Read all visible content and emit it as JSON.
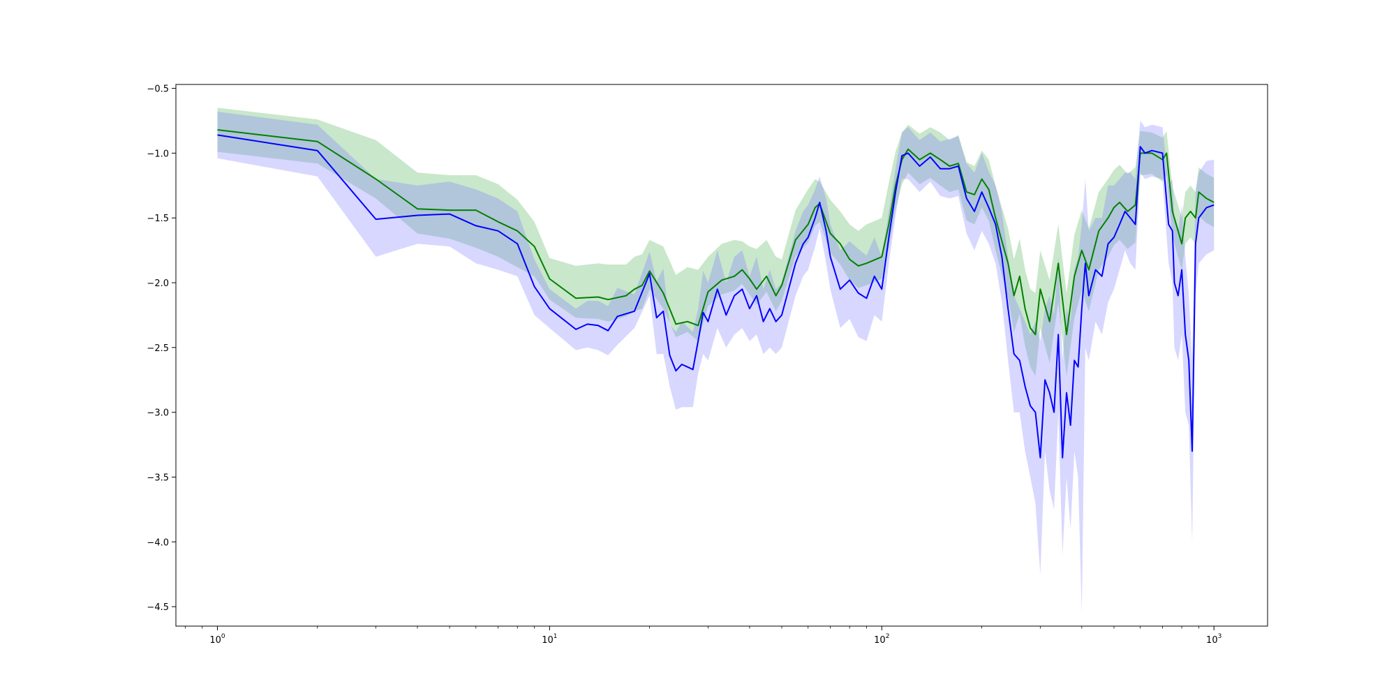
{
  "chart_data": {
    "type": "line",
    "title": "",
    "xlabel": "",
    "ylabel": "",
    "xscale": "log",
    "xlim": [
      0.75,
      1450
    ],
    "ylim": [
      -4.65,
      -0.47
    ],
    "grid": false,
    "x_major_ticks": [
      1,
      10,
      100,
      1000
    ],
    "x_tick_labels": [
      {
        "base": "10",
        "exp": "0"
      },
      {
        "base": "10",
        "exp": "1"
      },
      {
        "base": "10",
        "exp": "2"
      },
      {
        "base": "10",
        "exp": "3"
      }
    ],
    "y_ticks": [
      -0.5,
      -1.0,
      -1.5,
      -2.0,
      -2.5,
      -3.0,
      -3.5,
      -4.0,
      -4.5
    ],
    "y_tick_labels": [
      "−0.5",
      "−1.0",
      "−1.5",
      "−2.0",
      "−2.5",
      "−3.0",
      "−3.5",
      "−4.0",
      "−4.5"
    ],
    "series": [
      {
        "color": "#008000",
        "band_color": "#4caf50",
        "x": [
          1,
          2,
          3,
          4,
          5,
          6,
          7,
          8,
          9,
          10,
          12,
          14,
          15,
          17,
          18,
          19,
          20,
          22,
          24,
          26,
          28,
          30,
          33,
          36,
          38,
          40,
          42,
          45,
          48,
          50,
          55,
          60,
          63,
          65,
          70,
          75,
          80,
          85,
          90,
          100,
          105,
          110,
          115,
          120,
          130,
          140,
          150,
          160,
          170,
          180,
          190,
          200,
          210,
          220,
          230,
          240,
          250,
          260,
          270,
          280,
          290,
          300,
          320,
          340,
          360,
          380,
          400,
          420,
          450,
          480,
          500,
          520,
          550,
          580,
          600,
          650,
          700,
          720,
          750,
          780,
          800,
          820,
          850,
          880,
          900,
          950,
          1000
        ],
        "y": [
          -0.82,
          -0.91,
          -1.2,
          -1.43,
          -1.44,
          -1.44,
          -1.53,
          -1.6,
          -1.72,
          -1.97,
          -2.12,
          -2.11,
          -2.13,
          -2.1,
          -2.05,
          -2.02,
          -1.91,
          -2.08,
          -2.32,
          -2.3,
          -2.33,
          -2.07,
          -1.98,
          -1.95,
          -1.9,
          -1.97,
          -2.05,
          -1.95,
          -2.1,
          -2.02,
          -1.67,
          -1.55,
          -1.42,
          -1.39,
          -1.62,
          -1.7,
          -1.82,
          -1.87,
          -1.85,
          -1.8,
          -1.55,
          -1.25,
          -1.05,
          -0.97,
          -1.05,
          -1.0,
          -1.05,
          -1.1,
          -1.08,
          -1.3,
          -1.32,
          -1.2,
          -1.28,
          -1.5,
          -1.68,
          -1.85,
          -2.1,
          -1.95,
          -2.2,
          -2.35,
          -2.4,
          -2.05,
          -2.3,
          -1.85,
          -2.4,
          -1.95,
          -1.75,
          -1.9,
          -1.6,
          -1.5,
          -1.42,
          -1.38,
          -1.45,
          -1.4,
          -1.0,
          -1.0,
          -1.05,
          -1.0,
          -1.45,
          -1.6,
          -1.7,
          -1.5,
          -1.45,
          -1.5,
          -1.3,
          -1.35,
          -1.38
        ],
        "lower": [
          -0.99,
          -1.08,
          -1.35,
          -1.62,
          -1.66,
          -1.73,
          -1.8,
          -1.88,
          -1.95,
          -2.13,
          -2.27,
          -2.28,
          -2.3,
          -2.26,
          -2.22,
          -2.2,
          -2.05,
          -2.2,
          -2.42,
          -2.38,
          -2.45,
          -2.18,
          -2.09,
          -2.06,
          -2.01,
          -2.09,
          -2.17,
          -2.07,
          -2.22,
          -2.14,
          -1.8,
          -1.69,
          -1.56,
          -1.53,
          -1.77,
          -1.86,
          -1.98,
          -2.04,
          -2.02,
          -1.97,
          -1.73,
          -1.43,
          -1.24,
          -1.15,
          -1.24,
          -1.19,
          -1.25,
          -1.3,
          -1.28,
          -1.52,
          -1.55,
          -1.42,
          -1.52,
          -1.75,
          -1.94,
          -2.12,
          -2.38,
          -2.24,
          -2.49,
          -2.65,
          -2.72,
          -2.35,
          -2.62,
          -2.15,
          -2.72,
          -2.27,
          -2.06,
          -2.22,
          -1.9,
          -1.8,
          -1.71,
          -1.67,
          -1.74,
          -1.69,
          -1.17,
          -1.16,
          -1.22,
          -1.17,
          -1.64,
          -1.8,
          -1.9,
          -1.7,
          -1.65,
          -1.7,
          -1.49,
          -1.54,
          -1.57
        ],
        "upper": [
          -0.65,
          -0.74,
          -0.9,
          -1.15,
          -1.17,
          -1.17,
          -1.24,
          -1.36,
          -1.53,
          -1.81,
          -1.87,
          -1.85,
          -1.86,
          -1.86,
          -1.8,
          -1.78,
          -1.67,
          -1.72,
          -1.94,
          -1.88,
          -1.9,
          -1.8,
          -1.7,
          -1.67,
          -1.68,
          -1.72,
          -1.74,
          -1.67,
          -1.8,
          -1.82,
          -1.44,
          -1.28,
          -1.2,
          -1.22,
          -1.36,
          -1.45,
          -1.55,
          -1.6,
          -1.55,
          -1.5,
          -1.23,
          -0.99,
          -0.84,
          -0.78,
          -0.85,
          -0.8,
          -0.84,
          -0.9,
          -0.86,
          -1.07,
          -1.1,
          -0.98,
          -1.05,
          -1.25,
          -1.42,
          -1.58,
          -1.82,
          -1.66,
          -1.9,
          -2.05,
          -2.08,
          -1.75,
          -1.98,
          -1.55,
          -2.08,
          -1.63,
          -1.44,
          -1.58,
          -1.3,
          -1.2,
          -1.13,
          -1.09,
          -1.16,
          -1.11,
          -0.83,
          -0.84,
          -0.88,
          -0.83,
          -1.26,
          -1.4,
          -1.5,
          -1.3,
          -1.25,
          -1.3,
          -1.11,
          -1.16,
          -1.19
        ]
      },
      {
        "color": "#0000ff",
        "band_color": "#7b7bff",
        "x": [
          1,
          2,
          3,
          4,
          5,
          6,
          7,
          8,
          9,
          10,
          12,
          13,
          14,
          15,
          16,
          18,
          20,
          21,
          22,
          23,
          24,
          25,
          26,
          27,
          28,
          29,
          30,
          32,
          34,
          36,
          38,
          40,
          42,
          44,
          46,
          48,
          50,
          55,
          58,
          60,
          63,
          65,
          68,
          70,
          75,
          80,
          85,
          90,
          95,
          100,
          105,
          110,
          115,
          120,
          130,
          140,
          150,
          160,
          170,
          180,
          190,
          200,
          210,
          220,
          230,
          240,
          250,
          260,
          270,
          280,
          290,
          300,
          310,
          320,
          330,
          340,
          350,
          360,
          370,
          380,
          390,
          400,
          410,
          420,
          440,
          460,
          480,
          500,
          520,
          540,
          560,
          580,
          600,
          620,
          650,
          700,
          730,
          750,
          760,
          780,
          800,
          820,
          840,
          860,
          880,
          900,
          950,
          1000
        ],
        "y": [
          -0.86,
          -0.98,
          -1.51,
          -1.48,
          -1.47,
          -1.56,
          -1.6,
          -1.7,
          -2.03,
          -2.2,
          -2.36,
          -2.32,
          -2.33,
          -2.37,
          -2.26,
          -2.22,
          -1.93,
          -2.27,
          -2.22,
          -2.56,
          -2.68,
          -2.63,
          -2.65,
          -2.67,
          -2.45,
          -2.23,
          -2.3,
          -2.05,
          -2.25,
          -2.1,
          -2.05,
          -2.2,
          -2.1,
          -2.3,
          -2.2,
          -2.3,
          -2.25,
          -1.85,
          -1.7,
          -1.65,
          -1.5,
          -1.38,
          -1.6,
          -1.8,
          -2.05,
          -1.98,
          -2.08,
          -2.12,
          -1.95,
          -2.05,
          -1.65,
          -1.3,
          -1.02,
          -1.0,
          -1.1,
          -1.03,
          -1.12,
          -1.12,
          -1.1,
          -1.35,
          -1.45,
          -1.3,
          -1.42,
          -1.55,
          -1.8,
          -2.2,
          -2.55,
          -2.6,
          -2.8,
          -2.95,
          -3.0,
          -3.35,
          -2.75,
          -2.85,
          -3.0,
          -2.4,
          -3.35,
          -2.85,
          -3.1,
          -2.6,
          -2.65,
          -2.2,
          -1.85,
          -2.1,
          -1.9,
          -1.95,
          -1.7,
          -1.65,
          -1.55,
          -1.45,
          -1.5,
          -1.55,
          -0.95,
          -1.0,
          -0.98,
          -1.0,
          -1.55,
          -1.6,
          -2.0,
          -2.1,
          -1.9,
          -2.4,
          -2.6,
          -3.3,
          -1.7,
          -1.5,
          -1.42,
          -1.4
        ],
        "lower": [
          -1.04,
          -1.18,
          -1.8,
          -1.7,
          -1.72,
          -1.85,
          -1.9,
          -1.95,
          -2.25,
          -2.35,
          -2.52,
          -2.5,
          -2.52,
          -2.56,
          -2.48,
          -2.35,
          -2.1,
          -2.55,
          -2.55,
          -2.8,
          -2.98,
          -2.96,
          -2.96,
          -2.96,
          -2.7,
          -2.55,
          -2.6,
          -2.35,
          -2.5,
          -2.4,
          -2.35,
          -2.45,
          -2.4,
          -2.55,
          -2.5,
          -2.55,
          -2.5,
          -2.1,
          -1.95,
          -1.9,
          -1.72,
          -1.58,
          -1.85,
          -2.05,
          -2.35,
          -2.28,
          -2.42,
          -2.45,
          -2.25,
          -2.3,
          -1.85,
          -1.48,
          -1.2,
          -1.2,
          -1.3,
          -1.22,
          -1.33,
          -1.35,
          -1.33,
          -1.62,
          -1.75,
          -1.6,
          -1.7,
          -1.85,
          -2.15,
          -2.6,
          -3.0,
          -3.0,
          -3.3,
          -3.5,
          -3.7,
          -4.25,
          -3.3,
          -3.6,
          -3.75,
          -3.0,
          -4.1,
          -3.5,
          -3.9,
          -3.3,
          -3.5,
          -4.55,
          -2.5,
          -2.6,
          -2.3,
          -2.4,
          -2.15,
          -2.05,
          -1.9,
          -1.75,
          -1.85,
          -1.9,
          -1.15,
          -1.2,
          -1.18,
          -1.2,
          -1.85,
          -2.0,
          -2.5,
          -2.6,
          -2.4,
          -3.0,
          -3.1,
          -4.0,
          -2.1,
          -1.85,
          -1.78,
          -1.75
        ],
        "upper": [
          -0.68,
          -0.78,
          -1.2,
          -1.25,
          -1.22,
          -1.28,
          -1.35,
          -1.45,
          -1.82,
          -2.05,
          -2.2,
          -2.14,
          -2.14,
          -2.18,
          -2.04,
          -2.09,
          -1.76,
          -1.99,
          -1.89,
          -2.32,
          -2.38,
          -2.3,
          -2.34,
          -2.38,
          -2.2,
          -1.91,
          -2.0,
          -1.75,
          -2.0,
          -1.8,
          -1.75,
          -1.95,
          -1.8,
          -2.05,
          -1.9,
          -2.05,
          -2.0,
          -1.6,
          -1.45,
          -1.4,
          -1.28,
          -1.18,
          -1.35,
          -1.55,
          -1.75,
          -1.68,
          -1.74,
          -1.79,
          -1.65,
          -1.8,
          -1.45,
          -1.12,
          -0.84,
          -0.8,
          -0.9,
          -0.84,
          -0.91,
          -0.89,
          -0.87,
          -1.08,
          -1.15,
          -1.0,
          -1.14,
          -1.25,
          -1.45,
          -1.8,
          -2.1,
          -2.2,
          -2.3,
          -2.4,
          -2.3,
          -2.45,
          -2.2,
          -2.1,
          -2.25,
          -1.8,
          -2.6,
          -2.2,
          -2.3,
          -1.9,
          -1.8,
          -1.55,
          -1.2,
          -1.6,
          -1.5,
          -1.5,
          -1.25,
          -1.25,
          -1.2,
          -1.15,
          -1.15,
          -1.2,
          -0.75,
          -0.8,
          -0.78,
          -0.8,
          -1.25,
          -1.2,
          -1.5,
          -1.6,
          -1.4,
          -1.8,
          -2.1,
          -2.6,
          -1.3,
          -1.15,
          -1.06,
          -1.05
        ]
      }
    ]
  }
}
